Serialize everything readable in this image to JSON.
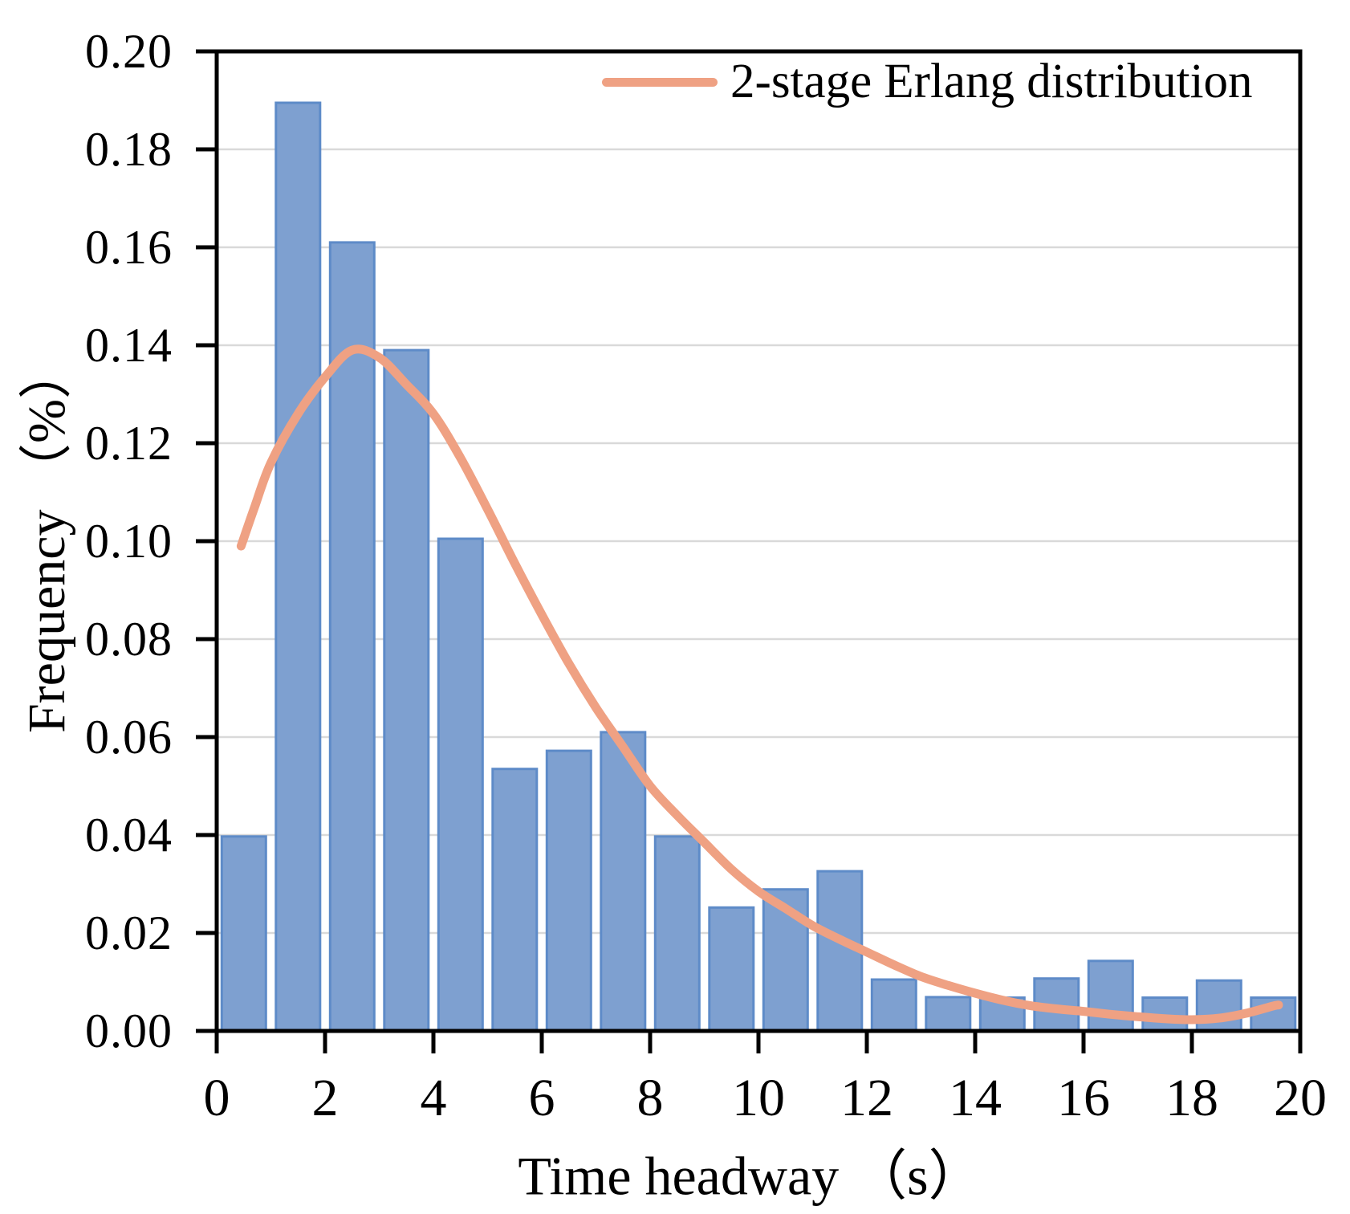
{
  "colors": {
    "background": "#FFFFFF",
    "axis": "#000000",
    "gridline": "#D9D9D9"
  },
  "chart_data": {
    "type": "bar",
    "title": "",
    "xlabel": "Time headway （s）",
    "ylabel": "Frequency （%）",
    "xlim": [
      0,
      20
    ],
    "ylim": [
      0,
      0.2
    ],
    "grid": "horizontal gridlines at every 0.02, light gray",
    "legend_position": "top-right inside plot",
    "bin_width": 1,
    "bar_color": "#7EA0D0",
    "bar_border_color": "#5E8BC8",
    "bin_edges": [
      0,
      1,
      2,
      3,
      4,
      5,
      6,
      7,
      8,
      9,
      10,
      11,
      12,
      13,
      14,
      15,
      16,
      17,
      18,
      19,
      20
    ],
    "values": [
      0.0397,
      0.1895,
      0.161,
      0.139,
      0.1005,
      0.0535,
      0.0572,
      0.061,
      0.0397,
      0.0252,
      0.0289,
      0.0326,
      0.0105,
      0.0069,
      0.0068,
      0.0107,
      0.0143,
      0.0068,
      0.0103,
      0.0068
    ],
    "x_ticks": {
      "values": [
        0,
        2,
        4,
        6,
        8,
        10,
        12,
        14,
        16,
        18,
        20
      ],
      "labels": [
        "0",
        "2",
        "4",
        "6",
        "8",
        "10",
        "12",
        "14",
        "16",
        "18",
        "20"
      ]
    },
    "y_ticks": {
      "values": [
        0,
        0.02,
        0.04,
        0.06,
        0.08,
        0.1,
        0.12,
        0.14,
        0.16,
        0.18,
        0.2
      ],
      "labels": [
        "0.00",
        "0.02",
        "0.04",
        "0.06",
        "0.08",
        "0.10",
        "0.12",
        "0.14",
        "0.16",
        "0.18",
        "0.20"
      ]
    },
    "series": [
      {
        "name": "2-stage Erlang distribution",
        "type": "line",
        "color": "#EFA183",
        "points": [
          [
            0.45,
            0.099
          ],
          [
            0.7,
            0.107
          ],
          [
            1.0,
            0.116
          ],
          [
            1.5,
            0.126
          ],
          [
            2.0,
            0.1335
          ],
          [
            2.5,
            0.139
          ],
          [
            3.0,
            0.1375
          ],
          [
            3.5,
            0.132
          ],
          [
            4.0,
            0.126
          ],
          [
            4.5,
            0.117
          ],
          [
            5.0,
            0.1065
          ],
          [
            5.5,
            0.0955
          ],
          [
            6.0,
            0.085
          ],
          [
            6.5,
            0.075
          ],
          [
            7.0,
            0.066
          ],
          [
            7.5,
            0.058
          ],
          [
            8.0,
            0.05
          ],
          [
            8.5,
            0.044
          ],
          [
            9.0,
            0.0385
          ],
          [
            9.5,
            0.033
          ],
          [
            10.0,
            0.0285
          ],
          [
            10.5,
            0.025
          ],
          [
            11.0,
            0.0215
          ],
          [
            11.5,
            0.0187
          ],
          [
            12.0,
            0.0161
          ],
          [
            12.5,
            0.0135
          ],
          [
            13.0,
            0.0111
          ],
          [
            13.5,
            0.0093
          ],
          [
            14.0,
            0.0077
          ],
          [
            14.5,
            0.0063
          ],
          [
            15.0,
            0.0052
          ],
          [
            15.5,
            0.0045
          ],
          [
            16.0,
            0.004
          ],
          [
            16.5,
            0.0034
          ],
          [
            17.0,
            0.0029
          ],
          [
            17.5,
            0.0025
          ],
          [
            18.0,
            0.0023
          ],
          [
            18.5,
            0.0026
          ],
          [
            19.0,
            0.0036
          ],
          [
            19.5,
            0.0051
          ],
          [
            19.6,
            0.0053
          ]
        ]
      }
    ],
    "legend": {
      "label": "2-stage Erlang distribution"
    }
  }
}
